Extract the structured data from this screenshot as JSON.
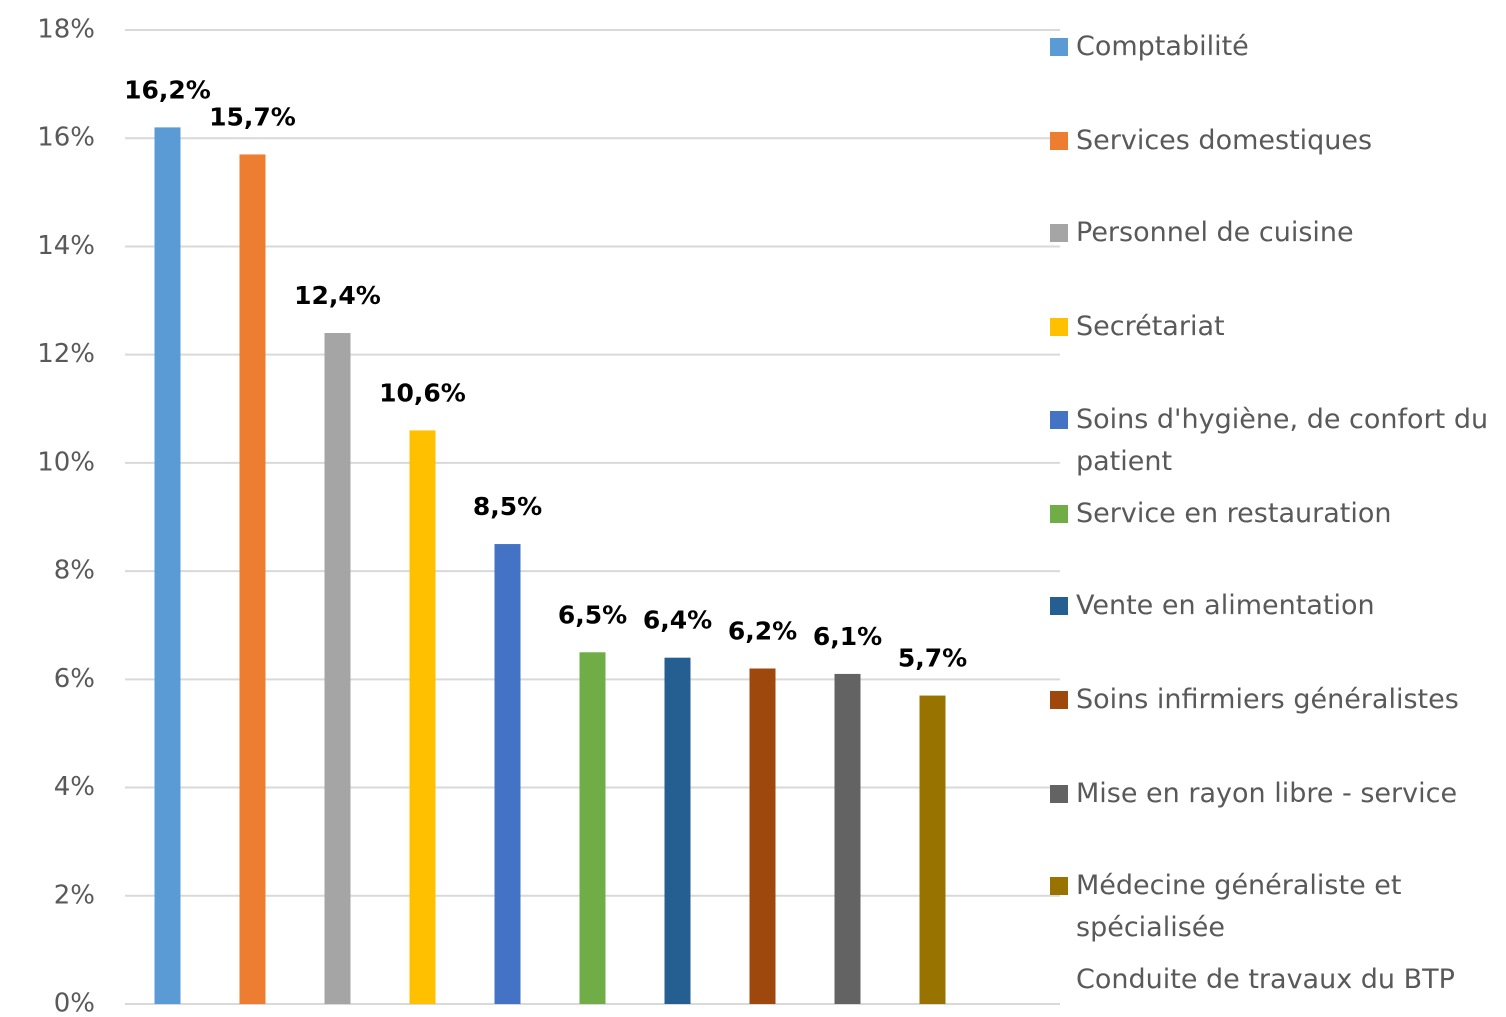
{
  "chart_data": {
    "type": "bar",
    "series": [
      {
        "name": "Comptabilité",
        "color": "#5b9bd5",
        "values": [
          16.2
        ],
        "value_labels": [
          "16,2%"
        ]
      },
      {
        "name": "Services domestiques",
        "color": "#ed7d31",
        "values": [
          15.7
        ],
        "value_labels": [
          "15,7%"
        ]
      },
      {
        "name": "Personnel de cuisine",
        "color": "#a5a5a5",
        "values": [
          12.4
        ],
        "value_labels": [
          "12,4%"
        ]
      },
      {
        "name": "Secrétariat",
        "color": "#ffc000",
        "values": [
          10.6
        ],
        "value_labels": [
          "10,6%"
        ]
      },
      {
        "name": "Soins d'hygiène, de confort du patient",
        "color": "#4472c4",
        "values": [
          8.5
        ],
        "value_labels": [
          "8,5%"
        ]
      },
      {
        "name": "Service en restauration",
        "color": "#70ad47",
        "values": [
          6.5
        ],
        "value_labels": [
          "6,5%"
        ]
      },
      {
        "name": "Vente en alimentation",
        "color": "#255e91",
        "values": [
          6.4
        ],
        "value_labels": [
          "6,4%"
        ]
      },
      {
        "name": "Soins infirmiers généralistes",
        "color": "#9e480e",
        "values": [
          6.2
        ],
        "value_labels": [
          "6,2%"
        ]
      },
      {
        "name": "Mise en rayon libre - service",
        "color": "#636363",
        "values": [
          6.1
        ],
        "value_labels": [
          "6,1%"
        ]
      },
      {
        "name": "Médecine généraliste et spécialisée",
        "color": "#997300",
        "values": [
          5.7
        ],
        "value_labels": [
          "5,7%"
        ]
      },
      {
        "name": "Conduite de travaux du BTP",
        "values": [
          null
        ]
      }
    ],
    "ylim": [
      0,
      18
    ],
    "yticks": [
      {
        "value": 0,
        "label": "0%"
      },
      {
        "value": 2,
        "label": "2%"
      },
      {
        "value": 4,
        "label": "4%"
      },
      {
        "value": 6,
        "label": "6%"
      },
      {
        "value": 8,
        "label": "8%"
      },
      {
        "value": 10,
        "label": "10%"
      },
      {
        "value": 12,
        "label": "12%"
      },
      {
        "value": 14,
        "label": "14%"
      },
      {
        "value": 16,
        "label": "16%"
      },
      {
        "value": 18,
        "label": "18%"
      }
    ],
    "grid": true,
    "legend": "right"
  }
}
